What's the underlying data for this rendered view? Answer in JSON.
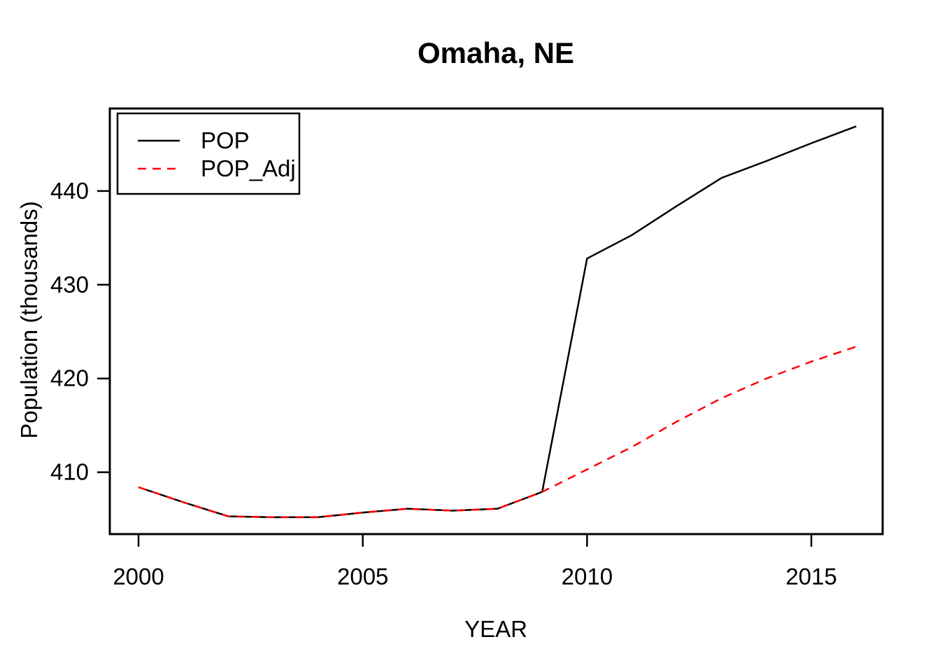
{
  "chart_data": {
    "type": "line",
    "title": "Omaha, NE",
    "xlabel": "YEAR",
    "ylabel": "Population (thousands)",
    "x_ticks": [
      "2000",
      "2005",
      "2010",
      "2015"
    ],
    "y_ticks": [
      "410",
      "420",
      "430",
      "440"
    ],
    "xlim": [
      1999.36,
      2016.59
    ],
    "ylim": [
      403.4,
      448.8
    ],
    "grid": false,
    "x": [
      2000,
      2001,
      2002,
      2003,
      2004,
      2005,
      2006,
      2007,
      2008,
      2009,
      2010,
      2011,
      2012,
      2013,
      2014,
      2015,
      2016
    ],
    "series": [
      {
        "name": "POP",
        "color": "#000000",
        "style": "solid",
        "values": [
          408.4,
          406.8,
          405.3,
          405.2,
          405.2,
          405.7,
          406.1,
          405.9,
          406.1,
          407.9,
          432.8,
          435.3,
          438.4,
          441.4,
          443.2,
          445.1,
          446.9
        ]
      },
      {
        "name": "POP_Adj",
        "color": "#FF0000",
        "style": "dashed",
        "values": [
          408.4,
          406.8,
          405.3,
          405.2,
          405.2,
          405.7,
          406.1,
          405.9,
          406.1,
          407.9,
          410.3,
          412.7,
          415.4,
          417.9,
          420.0,
          421.8,
          423.4
        ]
      }
    ],
    "legend": {
      "position": "top-left",
      "entries": [
        {
          "label": "POP",
          "color": "#000000",
          "style": "solid"
        },
        {
          "label": "POP_Adj",
          "color": "#FF0000",
          "style": "dashed"
        }
      ]
    }
  }
}
